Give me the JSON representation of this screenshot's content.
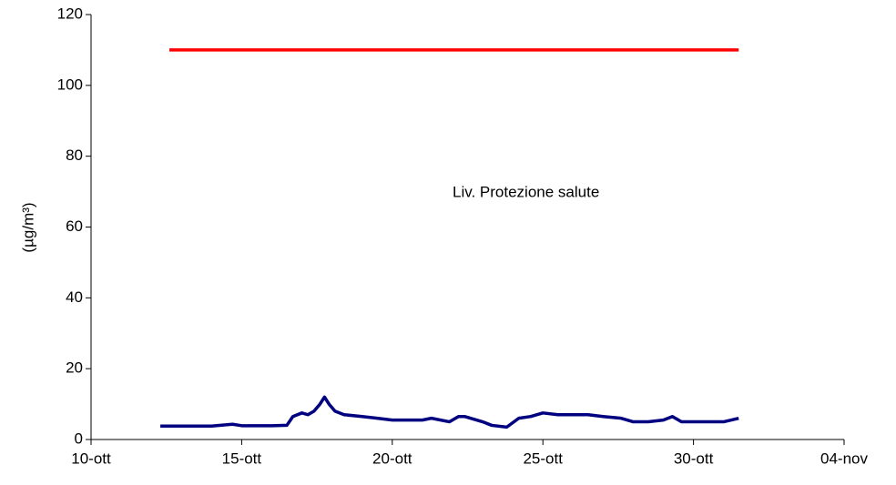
{
  "chart_data": {
    "type": "line",
    "y_label": "(µg/m³)",
    "annotation": "Liv. Protezione salute",
    "xlim": [
      10,
      35
    ],
    "xticks": [
      {
        "value": 10,
        "label": "10-ott"
      },
      {
        "value": 15,
        "label": "15-ott"
      },
      {
        "value": 20,
        "label": "20-ott"
      },
      {
        "value": 25,
        "label": "25-ott"
      },
      {
        "value": 30,
        "label": "30-ott"
      },
      {
        "value": 35,
        "label": "04-nov"
      }
    ],
    "ylim": [
      0,
      120
    ],
    "yticks": [
      0,
      20,
      40,
      60,
      80,
      100,
      120
    ],
    "grid": false,
    "series": [
      {
        "color": "#ff0000",
        "x": [
          12.6,
          31.5
        ],
        "values": [
          110,
          110
        ]
      },
      {
        "color": "#000080",
        "x": [
          12.3,
          13,
          14,
          14.7,
          15,
          15.5,
          16,
          16.5,
          16.7,
          17,
          17.2,
          17.4,
          17.6,
          17.75,
          17.9,
          18.1,
          18.4,
          19,
          19.5,
          20,
          20.5,
          21,
          21.3,
          21.9,
          22.2,
          22.4,
          23,
          23.3,
          23.8,
          24.2,
          24.6,
          25,
          25.5,
          26,
          26.5,
          27,
          27.6,
          28,
          28.5,
          29,
          29.3,
          29.6,
          30,
          31,
          31.5
        ],
        "values": [
          3.8,
          3.8,
          3.8,
          4.3,
          3.9,
          3.9,
          3.9,
          4,
          6.5,
          7.5,
          7,
          8,
          10,
          12,
          10,
          8,
          7,
          6.5,
          6,
          5.5,
          5.5,
          5.5,
          6,
          5,
          6.5,
          6.5,
          5,
          4,
          3.5,
          6,
          6.5,
          7.5,
          7,
          7,
          7,
          6.5,
          6,
          5,
          5,
          5.5,
          6.5,
          5,
          5,
          5,
          6
        ]
      }
    ]
  }
}
